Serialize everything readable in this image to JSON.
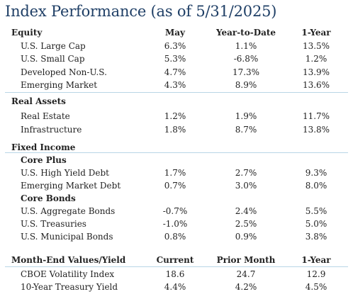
{
  "title": "Index Performance (as of 5/31/2025)",
  "header": {
    "section": "Equity",
    "col1": "May",
    "col2": "Year-to-Date",
    "col3": "1-Year"
  },
  "equity": [
    {
      "name": "U.S. Large Cap",
      "may": "6.3%",
      "ytd": "1.1%",
      "oneyear": "13.5%"
    },
    {
      "name": "U.S. Small Cap",
      "may": "5.3%",
      "ytd": "-6.8%",
      "oneyear": "1.2%"
    },
    {
      "name": "Developed Non-U.S.",
      "may": "4.7%",
      "ytd": "17.3%",
      "oneyear": "13.9%"
    },
    {
      "name": "Emerging Market",
      "may": "4.3%",
      "ytd": "8.9%",
      "oneyear": "13.6%"
    }
  ],
  "real_assets": {
    "section": "Real Assets",
    "rows": [
      {
        "name": "Real Estate",
        "may": "1.2%",
        "ytd": "1.9%",
        "oneyear": "11.7%"
      },
      {
        "name": "Infrastructure",
        "may": "1.8%",
        "ytd": "8.7%",
        "oneyear": "13.8%"
      }
    ]
  },
  "fixed_income": {
    "section": "Fixed Income",
    "core_plus": {
      "label": "Core Plus",
      "rows": [
        {
          "name": "U.S. High Yield Debt",
          "may": "1.7%",
          "ytd": "2.7%",
          "oneyear": "9.3%"
        },
        {
          "name": "Emerging Market Debt",
          "may": "0.7%",
          "ytd": "3.0%",
          "oneyear": "8.0%"
        }
      ]
    },
    "core_bonds": {
      "label": "Core Bonds",
      "rows": [
        {
          "name": "U.S. Aggregate Bonds",
          "may": "-0.7%",
          "ytd": "2.4%",
          "oneyear": "5.5%"
        },
        {
          "name": "U.S. Treasuries",
          "may": "-1.0%",
          "ytd": "2.5%",
          "oneyear": "5.0%"
        },
        {
          "name": "U.S. Municipal Bonds",
          "may": "0.8%",
          "ytd": "0.9%",
          "oneyear": "3.8%"
        }
      ]
    }
  },
  "month_end": {
    "section": "Month-End Values/Yield",
    "col1": "Current",
    "col2": "Prior Month",
    "col3": "1-Year",
    "rows": [
      {
        "name": "CBOE Volatility Index",
        "current": "18.6",
        "prior": "24.7",
        "oneyear": "12.9"
      },
      {
        "name": "10-Year Treasury Yield",
        "current": "4.4%",
        "prior": "4.2%",
        "oneyear": "4.5%"
      }
    ]
  },
  "colors": {
    "title": "#1f3f66",
    "separator": "#b9d6e6",
    "text": "#222222"
  }
}
